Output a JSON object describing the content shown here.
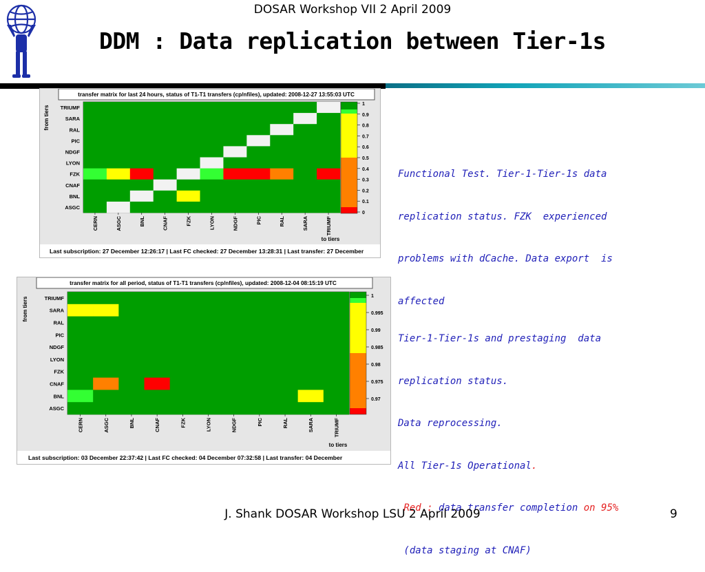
{
  "header": {
    "workshop": "DOSAR Workshop VII 2 April 2009",
    "title": "DDM : Data replication between Tier-1s"
  },
  "colors": {
    "green": "#009e00",
    "light_green": "#33ff33",
    "yellow": "#ffff00",
    "orange": "#ff8000",
    "red": "#ff0000",
    "white_cell": "#f2f2f2",
    "note_text": "#1f1fb8",
    "note_highlight": "#e52222"
  },
  "matrix1": {
    "title": "transfer matrix for last 24 hours, status of T1-T1 transfers (cp/nfiles), updated: 2008-12-27 13:55:03 UTC",
    "from_label": "from tiers",
    "to_label": "to tiers",
    "rows": [
      "TRIUMF",
      "SARA",
      "RAL",
      "PIC",
      "NDGF",
      "LYON",
      "FZK",
      "CNAF",
      "BNL",
      "ASGC"
    ],
    "cols": [
      "CERN",
      "ASGC",
      "BNL",
      "CNAF",
      "FZK",
      "LYON",
      "NDGF",
      "PIC",
      "RAL",
      "SARA",
      "TRIUMF"
    ],
    "cells": [
      [
        "G",
        "G",
        "G",
        "G",
        "G",
        "G",
        "G",
        "G",
        "G",
        "G",
        "W"
      ],
      [
        "G",
        "G",
        "G",
        "G",
        "G",
        "G",
        "G",
        "G",
        "G",
        "W",
        "G"
      ],
      [
        "G",
        "G",
        "G",
        "G",
        "G",
        "G",
        "G",
        "G",
        "W",
        "G",
        "G"
      ],
      [
        "G",
        "G",
        "G",
        "G",
        "G",
        "G",
        "G",
        "W",
        "G",
        "G",
        "G"
      ],
      [
        "G",
        "G",
        "G",
        "G",
        "G",
        "G",
        "W",
        "G",
        "G",
        "G",
        "G"
      ],
      [
        "G",
        "G",
        "G",
        "G",
        "G",
        "W",
        "G",
        "G",
        "G",
        "G",
        "G"
      ],
      [
        "L",
        "Y",
        "R",
        "G",
        "W",
        "L",
        "R",
        "R",
        "O",
        "G",
        "R"
      ],
      [
        "G",
        "G",
        "G",
        "W",
        "G",
        "G",
        "G",
        "G",
        "G",
        "G",
        "G"
      ],
      [
        "G",
        "G",
        "W",
        "G",
        "Y",
        "G",
        "G",
        "G",
        "G",
        "G",
        "G"
      ],
      [
        "G",
        "W",
        "G",
        "G",
        "G",
        "G",
        "G",
        "G",
        "G",
        "G",
        "G"
      ]
    ],
    "scale_ticks": [
      "1",
      "0.9",
      "0.8",
      "0.7",
      "0.6",
      "0.5",
      "0.4",
      "0.3",
      "0.2",
      "0.1",
      "0"
    ],
    "footer": "Last subscription: 27 December 12:26:17  |  Last FC checked: 27 December 13:28:31  |  Last transfer: 27 December"
  },
  "note1": {
    "lines": [
      "Functional Test. Tier-1-Tier-1s data",
      "replication status. FZK  experienced",
      "problems with dCache. Data export  is",
      "affected"
    ]
  },
  "matrix2": {
    "title": "transfer matrix for all period, status of T1-T1 transfers (cp/nfiles), updated: 2008-12-04 08:15:19 UTC",
    "from_label": "from tiers",
    "to_label": "to tiers",
    "rows": [
      "TRIUMF",
      "SARA",
      "RAL",
      "PIC",
      "NDGF",
      "LYON",
      "FZK",
      "CNAF",
      "BNL",
      "ASGC"
    ],
    "cols": [
      "CERN",
      "ASGC",
      "BNL",
      "CNAF",
      "FZK",
      "LYON",
      "NDGF",
      "PIC",
      "RAL",
      "SARA",
      "TRIUMF"
    ],
    "cells": [
      [
        "G",
        "G",
        "G",
        "G",
        "G",
        "G",
        "G",
        "G",
        "G",
        "G",
        "G"
      ],
      [
        "Y",
        "Y",
        "G",
        "G",
        "G",
        "G",
        "G",
        "G",
        "G",
        "G",
        "G"
      ],
      [
        "G",
        "G",
        "G",
        "G",
        "G",
        "G",
        "G",
        "G",
        "G",
        "G",
        "G"
      ],
      [
        "G",
        "G",
        "G",
        "G",
        "G",
        "G",
        "G",
        "G",
        "G",
        "G",
        "G"
      ],
      [
        "G",
        "G",
        "G",
        "G",
        "G",
        "G",
        "G",
        "G",
        "G",
        "G",
        "G"
      ],
      [
        "G",
        "G",
        "G",
        "G",
        "G",
        "G",
        "G",
        "G",
        "G",
        "G",
        "G"
      ],
      [
        "G",
        "G",
        "G",
        "G",
        "G",
        "G",
        "G",
        "G",
        "G",
        "G",
        "G"
      ],
      [
        "G",
        "O",
        "G",
        "R",
        "G",
        "G",
        "G",
        "G",
        "G",
        "G",
        "G"
      ],
      [
        "L",
        "G",
        "G",
        "G",
        "G",
        "G",
        "G",
        "G",
        "G",
        "Y",
        "G"
      ],
      [
        "G",
        "G",
        "G",
        "G",
        "G",
        "G",
        "G",
        "G",
        "G",
        "G",
        "G"
      ]
    ],
    "scale_ticks": [
      "1",
      "0.995",
      "0.99",
      "0.985",
      "0.98",
      "0.975",
      "0.97"
    ],
    "footer": "Last subscription: 03 December 22:37:42  |  Last FC checked: 04 December 07:32:58  |  Last transfer: 04 December"
  },
  "note2": {
    "line1": "Tier-1-Tier-1s and prestaging  data",
    "line2": "replication status.",
    "line3": "Data reprocessing.",
    "line4a": "All Tier-1s Operational",
    "line4b": ".",
    "line5a": " Red :",
    "line5b": " data transfer completion ",
    "line5c": "on 95%",
    "line6": " (data staging at CNAF)"
  },
  "footer": {
    "text": "J. Shank DOSAR Workshop LSU 2 April 2009",
    "page": "9"
  }
}
